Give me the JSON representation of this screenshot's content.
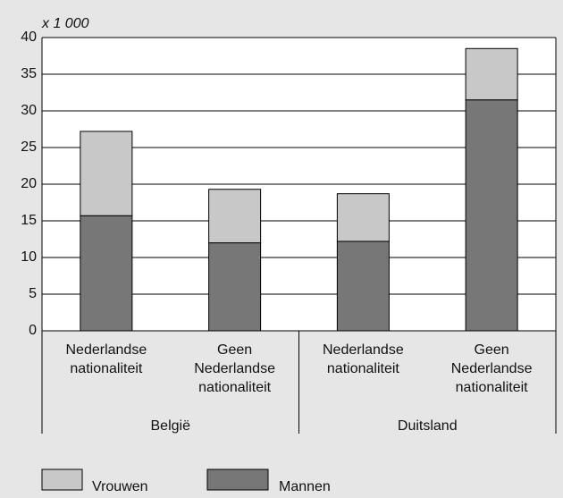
{
  "chart_data": {
    "type": "stacked_bar",
    "unit_label": "x 1 000",
    "categories": [
      "Nederlandse nationaliteit",
      "Geen Nederlandse nationaliteit",
      "Nederlandse nationaliteit",
      "Geen Nederlandse nationaliteit"
    ],
    "groups": [
      "België",
      "Duitsland"
    ],
    "series": [
      {
        "name": "Mannen",
        "color": "#777777",
        "values": [
          15.7,
          12,
          12.2,
          31.5
        ]
      },
      {
        "name": "Vrouwen",
        "color": "#c8c8c8",
        "values": [
          11.5,
          7.3,
          6.5,
          7
        ]
      }
    ],
    "legend_order": [
      1,
      0
    ],
    "ylim": [
      0,
      40
    ],
    "yticks": [
      0,
      5,
      10,
      15,
      20,
      25,
      30,
      35,
      40
    ],
    "grid": true
  }
}
